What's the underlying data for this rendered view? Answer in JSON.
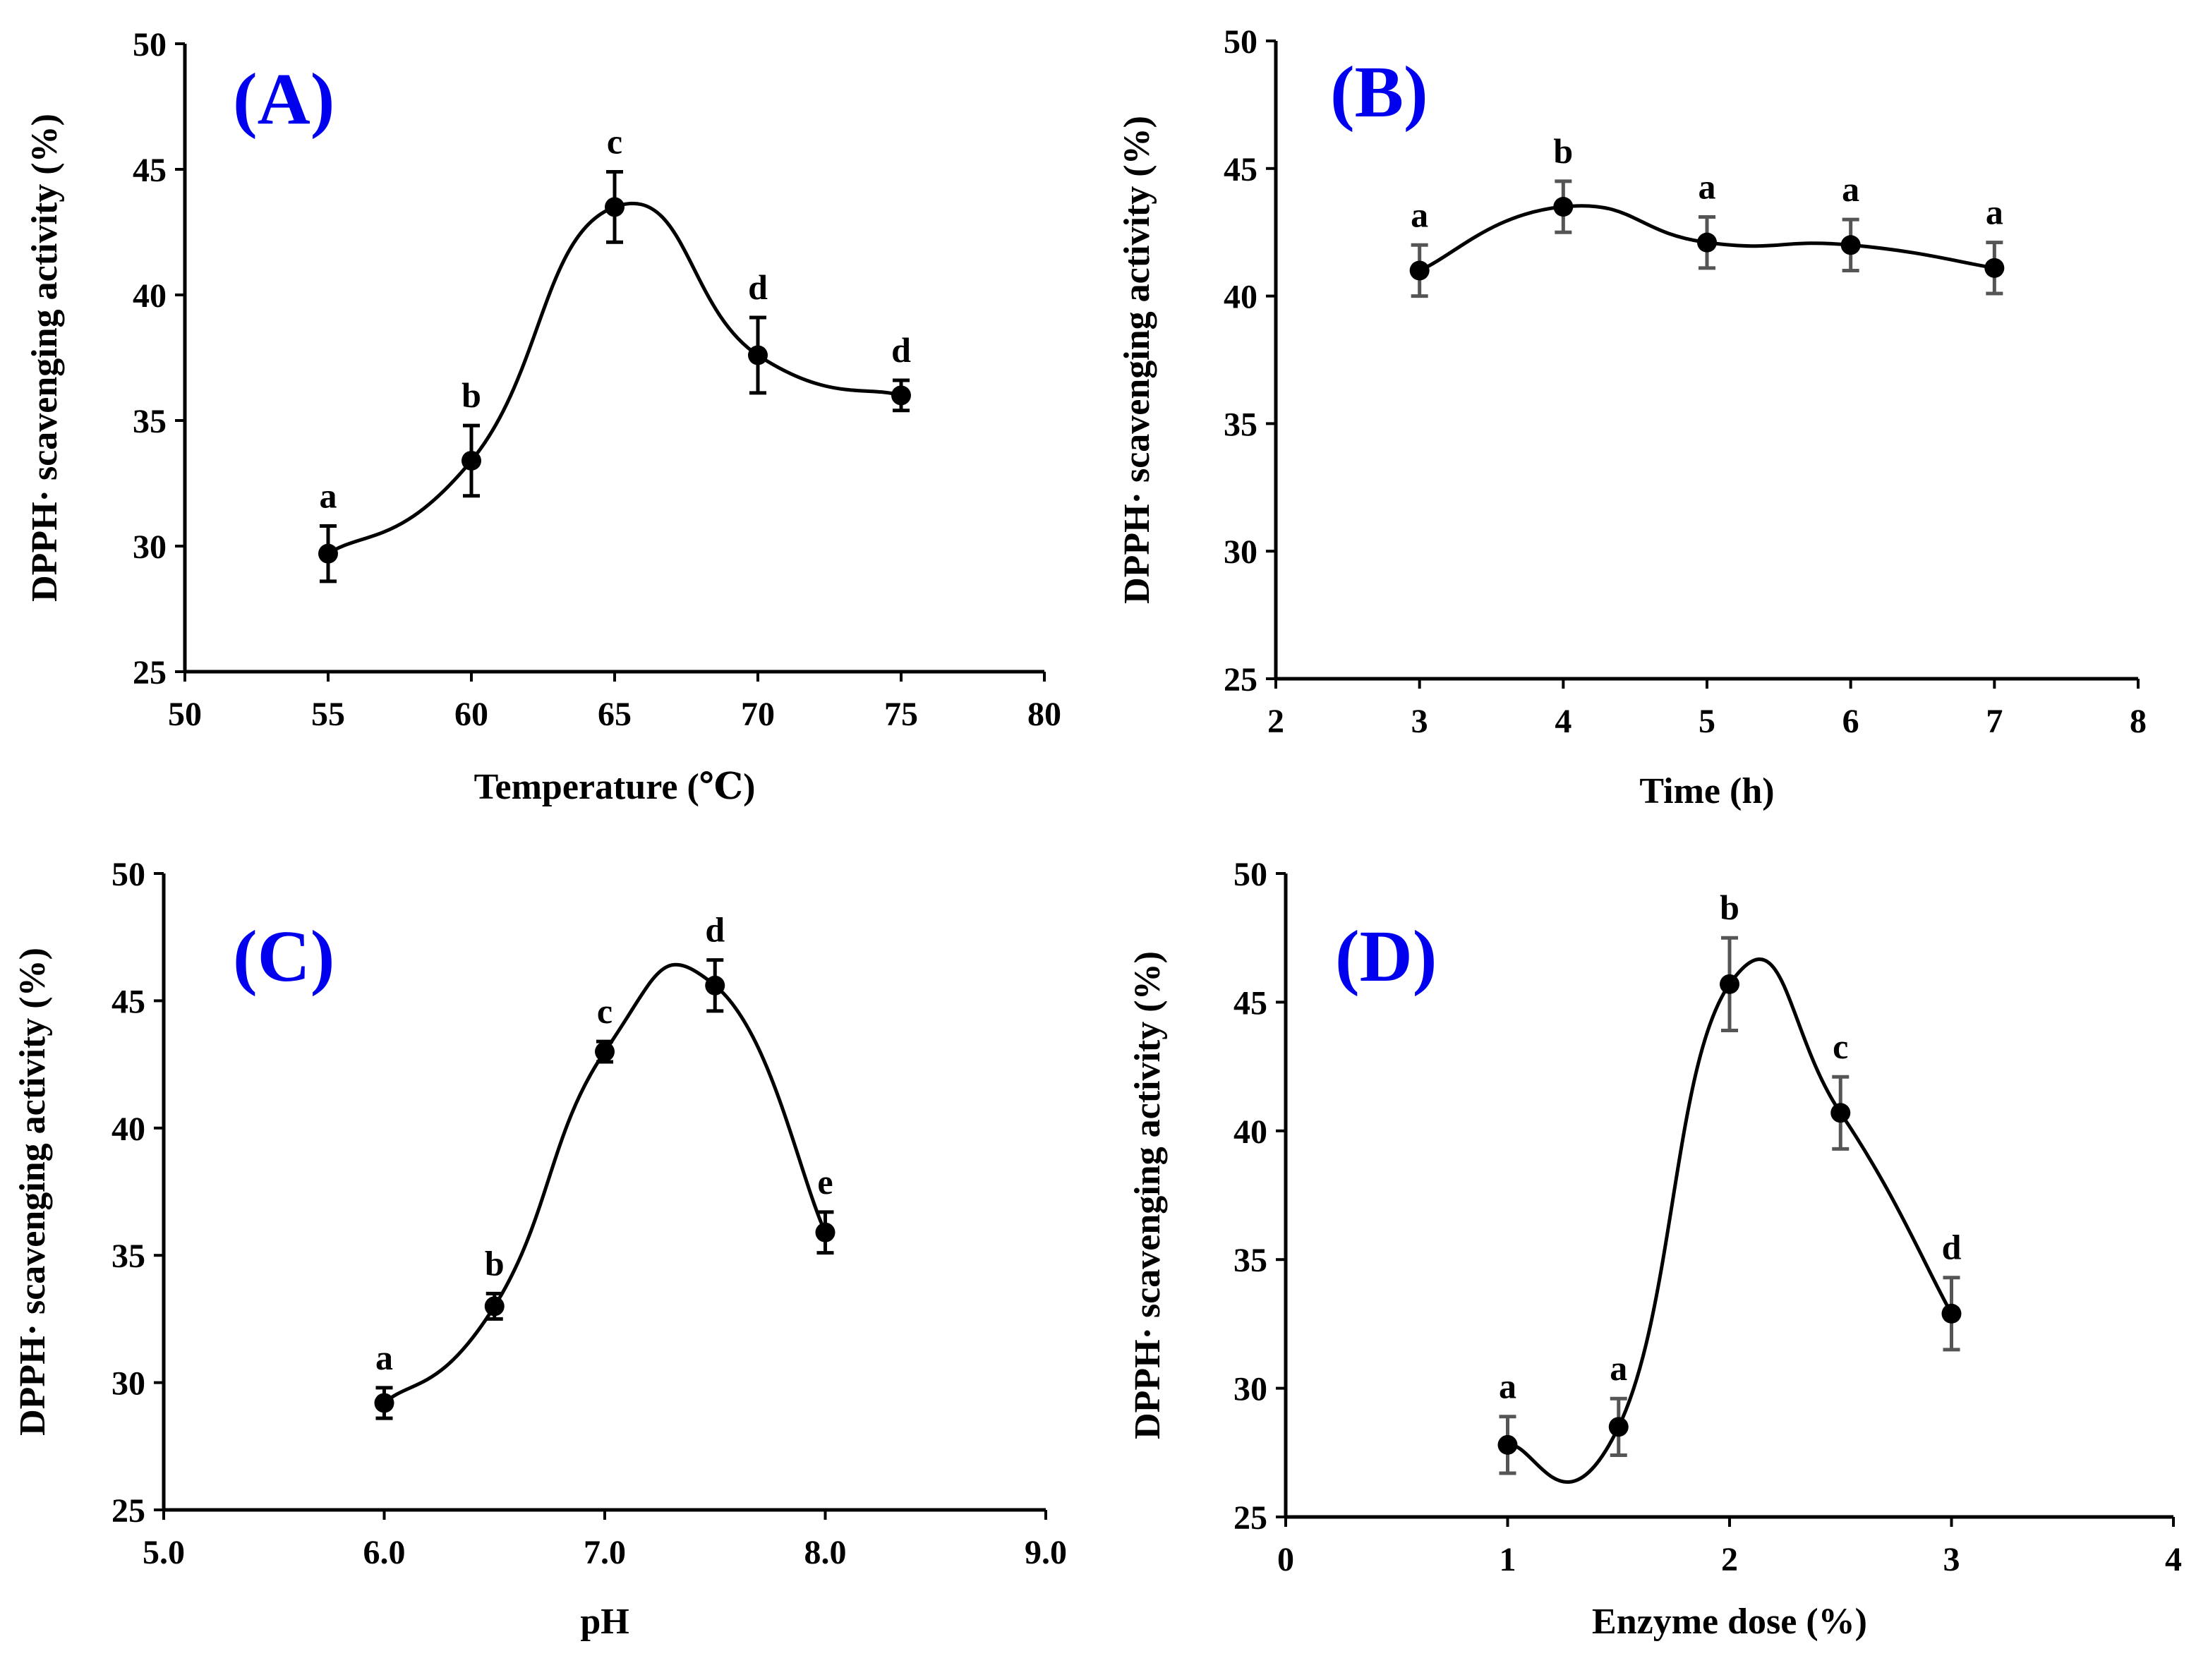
{
  "chart_data": [
    {
      "id": "A",
      "type": "line",
      "panel_label": "(A)",
      "xlabel": "Temperature (℃)",
      "ylabel": "DPPH· scavenging activity (%)",
      "xlim": [
        50,
        80
      ],
      "ylim": [
        25,
        50
      ],
      "x_ticks": [
        50,
        55,
        60,
        65,
        70,
        75,
        80
      ],
      "x_tick_labels": [
        "50",
        "55",
        "60",
        "65",
        "70",
        "75",
        "80"
      ],
      "y_ticks": [
        25,
        30,
        35,
        40,
        45,
        50
      ],
      "y_tick_labels": [
        "25",
        "30",
        "35",
        "40",
        "45",
        "50"
      ],
      "x": [
        55,
        60,
        65,
        70,
        75
      ],
      "y": [
        29.7,
        33.4,
        43.5,
        37.6,
        36.0
      ],
      "err": [
        1.1,
        1.4,
        1.4,
        1.5,
        0.6
      ],
      "labels": [
        "a",
        "b",
        "c",
        "d",
        "d"
      ],
      "err_color": "#000000"
    },
    {
      "id": "B",
      "type": "line",
      "panel_label": "(B)",
      "xlabel": "Time (h)",
      "ylabel": "DPPH· scavenging activity (%)",
      "xlim": [
        2,
        8
      ],
      "ylim": [
        25,
        50
      ],
      "x_ticks": [
        2,
        3,
        4,
        5,
        6,
        7,
        8
      ],
      "x_tick_labels": [
        "2",
        "3",
        "4",
        "5",
        "6",
        "7",
        "8"
      ],
      "y_ticks": [
        25,
        30,
        35,
        40,
        45,
        50
      ],
      "y_tick_labels": [
        "25",
        "30",
        "35",
        "40",
        "45",
        "50"
      ],
      "x": [
        3,
        4,
        5,
        6,
        7
      ],
      "y": [
        41.0,
        43.5,
        42.1,
        42.0,
        41.1
      ],
      "err": [
        1.0,
        1.0,
        1.0,
        1.0,
        1.0
      ],
      "labels": [
        "a",
        "b",
        "a",
        "a",
        "a"
      ],
      "err_color": "#555555"
    },
    {
      "id": "C",
      "type": "line",
      "panel_label": "(C)",
      "xlabel": "pH",
      "ylabel": "DPPH· scavenging activity (%)",
      "xlim": [
        5,
        9
      ],
      "ylim": [
        25,
        50
      ],
      "x_ticks": [
        5,
        6,
        7,
        8,
        9
      ],
      "x_tick_labels": [
        "5.0",
        "6.0",
        "7.0",
        "8.0",
        "9.0"
      ],
      "y_ticks": [
        25,
        30,
        35,
        40,
        45,
        50
      ],
      "y_tick_labels": [
        "25",
        "30",
        "35",
        "40",
        "45",
        "50"
      ],
      "x": [
        6.0,
        6.5,
        7.0,
        7.5,
        8.0
      ],
      "y": [
        29.2,
        33.0,
        43.0,
        45.6,
        35.9
      ],
      "err": [
        0.6,
        0.5,
        0.4,
        1.0,
        0.8
      ],
      "labels": [
        "a",
        "b",
        "c",
        "d",
        "e"
      ],
      "err_color": "#000000"
    },
    {
      "id": "D",
      "type": "line",
      "panel_label": "(D)",
      "xlabel": "Enzyme dose (%)",
      "ylabel": "DPPH· scavenging activity (%)",
      "xlim": [
        0,
        4
      ],
      "ylim": [
        25,
        50
      ],
      "x_ticks": [
        0,
        1,
        2,
        3,
        4
      ],
      "x_tick_labels": [
        "0",
        "1",
        "2",
        "3",
        "4"
      ],
      "y_ticks": [
        25,
        30,
        35,
        40,
        45,
        50
      ],
      "y_tick_labels": [
        "25",
        "30",
        "35",
        "40",
        "45",
        "50"
      ],
      "x": [
        1.0,
        1.5,
        2.0,
        2.5,
        3.0
      ],
      "y": [
        27.8,
        28.5,
        45.7,
        40.7,
        32.9
      ],
      "err": [
        1.1,
        1.1,
        1.8,
        1.4,
        1.4
      ],
      "labels": [
        "a",
        "a",
        "b",
        "c",
        "d"
      ],
      "err_color": "#555555"
    }
  ]
}
